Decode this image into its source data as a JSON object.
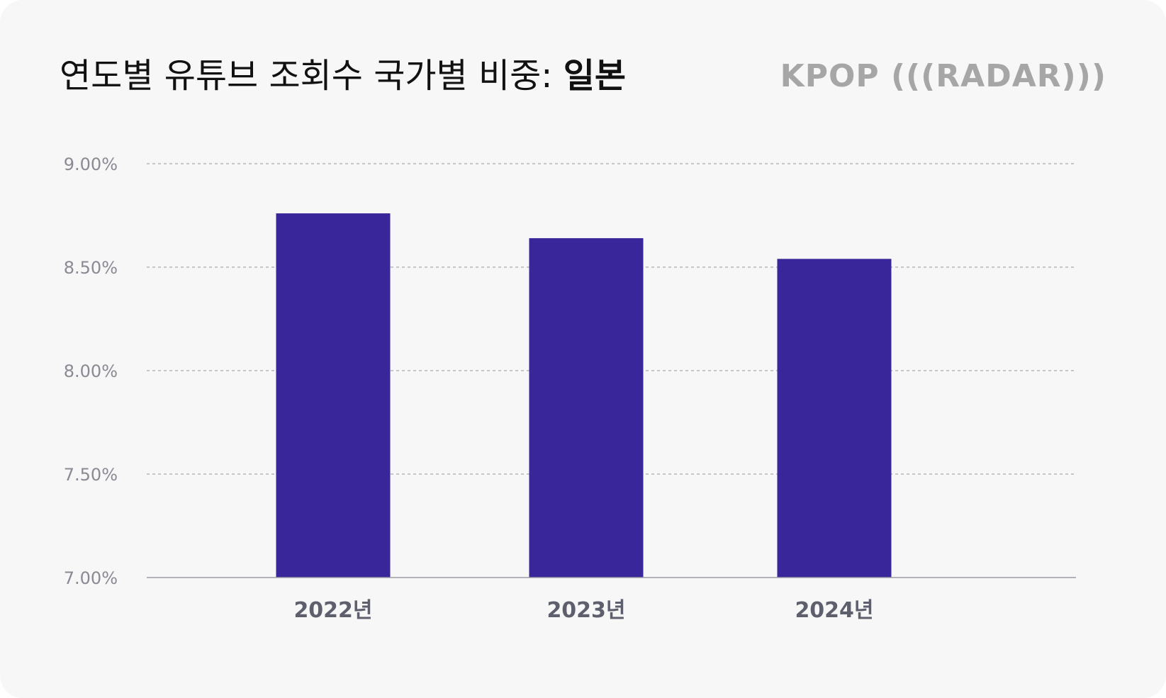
{
  "header": {
    "title_prefix": "연도별 유튜브 조회수 국가별 비중: ",
    "title_highlight": "일본",
    "logo_text": "KPOP (((RADAR)))"
  },
  "chart_data": {
    "type": "bar",
    "title": "연도별 유튜브 조회수 국가별 비중: 일본",
    "categories": [
      "2022년",
      "2023년",
      "2024년"
    ],
    "values": [
      8.76,
      8.64,
      8.54
    ],
    "y_ticks": [
      "7.00%",
      "7.50%",
      "8.00%",
      "8.50%",
      "9.00%"
    ],
    "ylim": [
      7.0,
      9.0
    ],
    "grid": true,
    "legend": "none",
    "colors": {
      "bar": "#39269a",
      "grid": "#a9a9b0",
      "axis": "#9c9ca4"
    }
  }
}
